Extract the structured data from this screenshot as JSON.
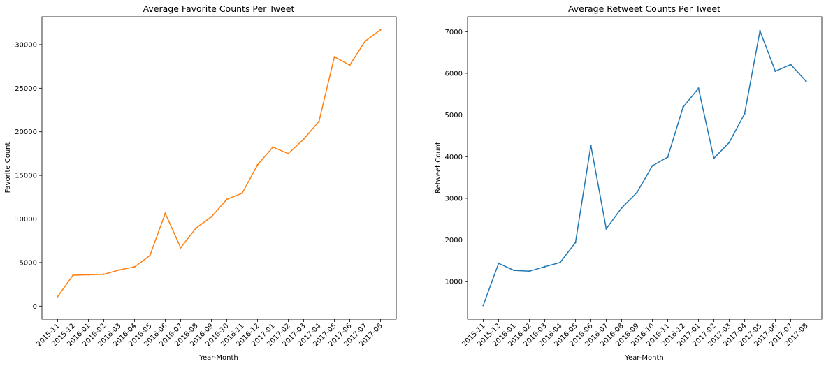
{
  "chart_data": [
    {
      "type": "line",
      "title": "Average Favorite Counts Per Tweet",
      "xlabel": "Year-Month",
      "ylabel": "Favorite Count",
      "categories": [
        "2015-11",
        "2015-12",
        "2016-01",
        "2016-02",
        "2016-03",
        "2016-04",
        "2016-05",
        "2016-06",
        "2016-07",
        "2016-08",
        "2016-09",
        "2016-10",
        "2016-11",
        "2016-12",
        "2017-01",
        "2017-02",
        "2017-03",
        "2017-04",
        "2017-05",
        "2017-06",
        "2017-07",
        "2017-08"
      ],
      "ylim": [
        -1500,
        33200
      ],
      "yticks": [
        0,
        5000,
        10000,
        15000,
        20000,
        25000,
        30000
      ],
      "grid": false,
      "color": "#ff7f0e",
      "series": [
        {
          "name": "favorite_count",
          "values": [
            1100,
            3550,
            3600,
            3650,
            4150,
            4500,
            5800,
            10650,
            6700,
            8950,
            10250,
            12250,
            12950,
            16200,
            18250,
            17500,
            19150,
            21200,
            28600,
            27650,
            30400,
            31700
          ]
        }
      ]
    },
    {
      "type": "line",
      "title": "Average Retweet Counts Per Tweet",
      "xlabel": "Year-Month",
      "ylabel": "Retweet Count",
      "categories": [
        "2015-11",
        "2015-12",
        "2016-01",
        "2016-02",
        "2016-03",
        "2016-04",
        "2016-05",
        "2016-06",
        "2016-07",
        "2016-08",
        "2016-09",
        "2016-10",
        "2016-11",
        "2016-12",
        "2017-01",
        "2017-02",
        "2017-03",
        "2017-04",
        "2017-05",
        "2017-06",
        "2017-07",
        "2017-08"
      ],
      "ylim": [
        99,
        7357
      ],
      "yticks": [
        1000,
        2000,
        3000,
        4000,
        5000,
        6000,
        7000
      ],
      "grid": false,
      "color": "#1f77b4",
      "series": [
        {
          "name": "retweet_count",
          "values": [
            430,
            1440,
            1270,
            1250,
            1360,
            1460,
            1940,
            4270,
            2270,
            2770,
            3140,
            3780,
            3990,
            5190,
            5640,
            3960,
            4340,
            5030,
            7020,
            6050,
            6210,
            5810
          ]
        }
      ]
    }
  ]
}
